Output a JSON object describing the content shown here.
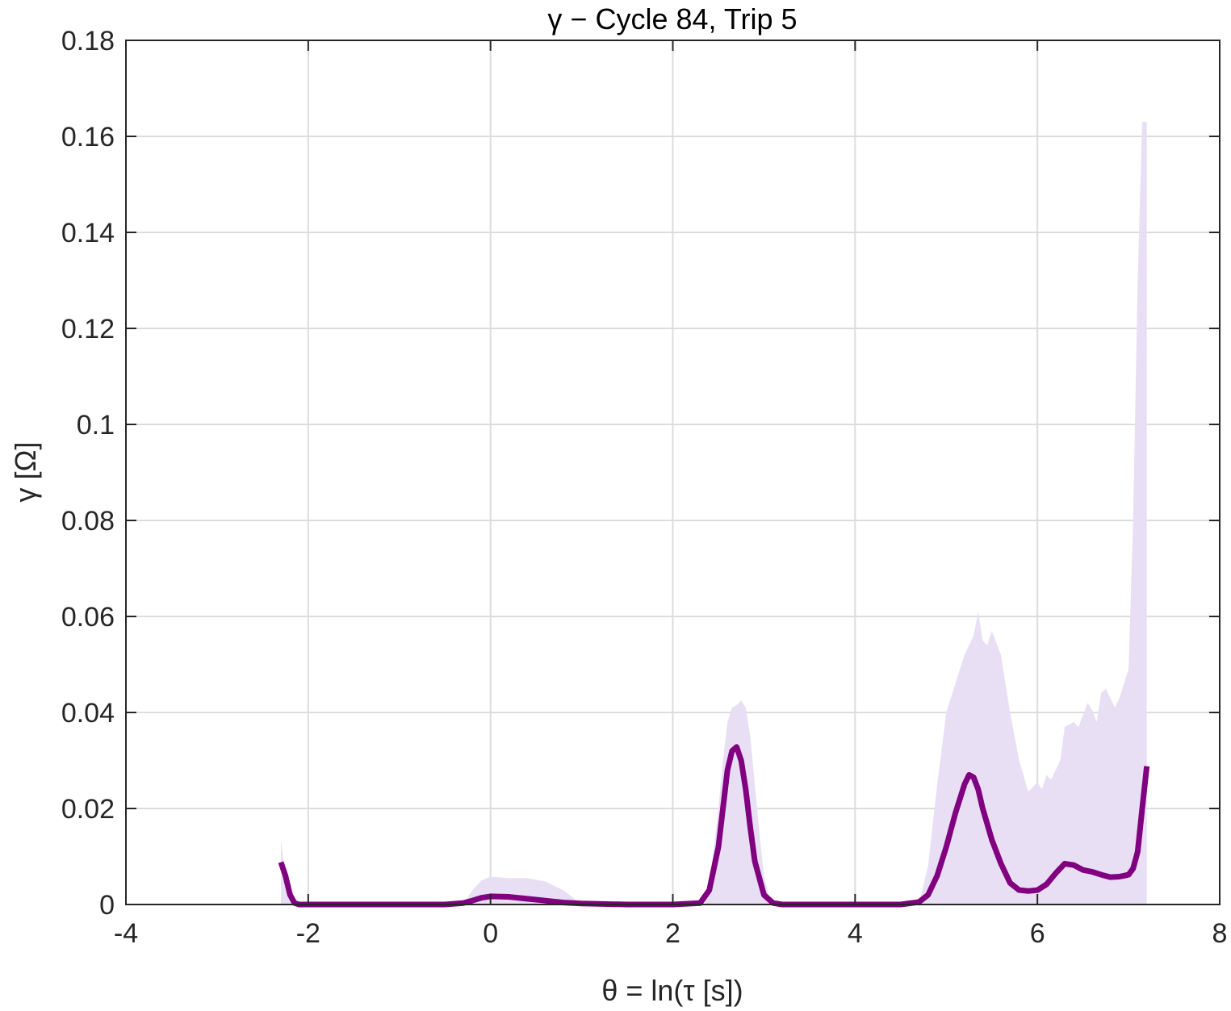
{
  "chart_data": {
    "type": "line",
    "title": "γ − Cycle 84, Trip 5",
    "xlabel": "θ = ln(τ [s])",
    "ylabel": "γ [Ω]",
    "xlim": [
      -4,
      8
    ],
    "ylim": [
      0,
      0.18
    ],
    "x_ticks": [
      "-4",
      "-2",
      "0",
      "2",
      "4",
      "6",
      "8"
    ],
    "y_ticks": [
      "0",
      "0.02",
      "0.04",
      "0.06",
      "0.08",
      "0.1",
      "0.12",
      "0.14",
      "0.16",
      "0.18"
    ],
    "grid": true,
    "colors": {
      "line": "#800080",
      "band": "#e9dff5"
    },
    "series": [
      {
        "kind": "line",
        "x": [
          -2.3,
          -2.25,
          -2.2,
          -2.15,
          -2.1,
          -2.0,
          -1.5,
          -1.0,
          -0.5,
          -0.3,
          -0.2,
          -0.1,
          0.0,
          0.2,
          0.4,
          0.6,
          0.8,
          1.0,
          1.5,
          2.0,
          2.3,
          2.4,
          2.5,
          2.55,
          2.6,
          2.65,
          2.7,
          2.75,
          2.8,
          2.85,
          2.9,
          3.0,
          3.1,
          3.2,
          3.3,
          3.5,
          4.0,
          4.5,
          4.7,
          4.8,
          4.9,
          5.0,
          5.1,
          5.2,
          5.25,
          5.3,
          5.35,
          5.4,
          5.5,
          5.6,
          5.7,
          5.8,
          5.9,
          6.0,
          6.1,
          6.2,
          6.3,
          6.4,
          6.5,
          6.6,
          6.7,
          6.8,
          6.9,
          7.0,
          7.05,
          7.1,
          7.15,
          7.2
        ],
        "y": [
          0.0088,
          0.006,
          0.002,
          0.0003,
          0.0,
          0.0,
          0.0,
          0.0,
          0.0,
          0.0003,
          0.0008,
          0.0014,
          0.0017,
          0.0016,
          0.0012,
          0.0008,
          0.0004,
          0.0002,
          0.0,
          0.0,
          0.0003,
          0.003,
          0.012,
          0.02,
          0.028,
          0.032,
          0.0328,
          0.03,
          0.024,
          0.016,
          0.009,
          0.002,
          0.0003,
          0.0,
          0.0,
          0.0,
          0.0,
          0.0,
          0.0005,
          0.002,
          0.006,
          0.012,
          0.019,
          0.025,
          0.027,
          0.0265,
          0.024,
          0.02,
          0.0135,
          0.0085,
          0.0045,
          0.003,
          0.0028,
          0.003,
          0.0042,
          0.0065,
          0.0085,
          0.0082,
          0.0072,
          0.0068,
          0.0062,
          0.0057,
          0.0058,
          0.0062,
          0.0075,
          0.011,
          0.02,
          0.0288
        ]
      },
      {
        "kind": "band",
        "x": [
          -2.3,
          -2.25,
          -2.2,
          -2.15,
          -0.3,
          -0.2,
          -0.1,
          0.0,
          0.2,
          0.4,
          0.6,
          0.8,
          0.9,
          1.0,
          2.35,
          2.4,
          2.5,
          2.55,
          2.6,
          2.65,
          2.7,
          2.75,
          2.8,
          2.85,
          2.9,
          2.95,
          3.0,
          3.05,
          3.1,
          3.15,
          4.7,
          4.8,
          4.9,
          5.0,
          5.1,
          5.2,
          5.3,
          5.35,
          5.4,
          5.45,
          5.5,
          5.6,
          5.65,
          5.7,
          5.8,
          5.9,
          6.0,
          6.05,
          6.1,
          6.15,
          6.2,
          6.25,
          6.3,
          6.4,
          6.45,
          6.5,
          6.55,
          6.6,
          6.65,
          6.7,
          6.75,
          6.8,
          6.85,
          6.9,
          6.95,
          7.0,
          7.05,
          7.1,
          7.15,
          7.2
        ],
        "upper": [
          0.0135,
          0.006,
          0.001,
          0.0,
          0.0,
          0.003,
          0.005,
          0.0058,
          0.0055,
          0.0055,
          0.0048,
          0.003,
          0.0015,
          0.0,
          0.0,
          0.004,
          0.02,
          0.03,
          0.038,
          0.041,
          0.0415,
          0.0425,
          0.041,
          0.035,
          0.025,
          0.015,
          0.006,
          0.002,
          0.0005,
          0.0,
          0.0,
          0.008,
          0.025,
          0.04,
          0.046,
          0.052,
          0.056,
          0.061,
          0.055,
          0.054,
          0.057,
          0.052,
          0.046,
          0.04,
          0.03,
          0.0235,
          0.0255,
          0.024,
          0.027,
          0.026,
          0.028,
          0.03,
          0.037,
          0.038,
          0.037,
          0.0395,
          0.042,
          0.0405,
          0.038,
          0.044,
          0.045,
          0.043,
          0.041,
          0.043,
          0.046,
          0.049,
          0.08,
          0.13,
          0.163,
          0.163
        ],
        "lower": [
          0.0,
          0.0,
          0.0,
          0.0,
          0.0,
          0.0,
          0.0,
          0.0,
          0.0,
          0.0,
          0.0,
          0.0,
          0.0,
          0.0,
          0.0,
          0.0,
          0.0,
          0.0,
          0.0,
          0.0,
          0.0,
          0.0,
          0.0,
          0.0,
          0.0,
          0.0,
          0.0,
          0.0,
          0.0,
          0.0,
          0.0,
          0.0,
          0.0,
          0.0,
          0.0,
          0.0,
          0.0,
          0.0,
          0.0,
          0.0,
          0.0,
          0.0,
          0.0,
          0.0,
          0.0,
          0.0,
          0.0,
          0.0,
          0.0,
          0.0,
          0.0,
          0.0,
          0.0,
          0.0,
          0.0,
          0.0,
          0.0,
          0.0,
          0.0,
          0.0,
          0.0,
          0.0,
          0.0,
          0.0,
          0.0,
          0.0,
          0.0,
          0.0,
          0.0,
          0.0
        ]
      }
    ]
  }
}
